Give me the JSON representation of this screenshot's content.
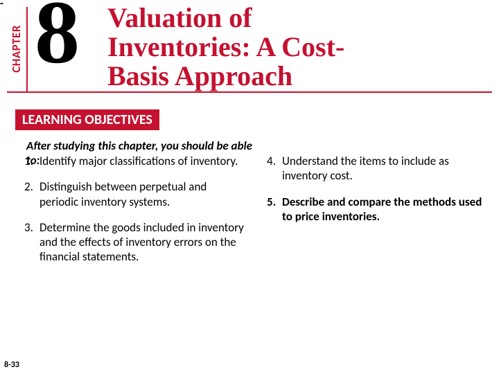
{
  "top_dash": "-",
  "chapter_label": "CHAPTER",
  "chapter_number": "8",
  "chapter_title_line1": "Valuation of",
  "chapter_title_line2": "Inventories: A Cost-",
  "chapter_title_line3": "Basis Approach",
  "objectives_heading": "LEARNING OBJECTIVES",
  "intro_line": "After studying this chapter, you should be able",
  "intro_to": "to:",
  "objectives_left": [
    {
      "n": "1.",
      "text": "Identify major classifications of inventory.",
      "strong": false
    },
    {
      "n": "2.",
      "text": "Distinguish between perpetual and periodic inventory systems.",
      "strong": false
    },
    {
      "n": "3.",
      "text": "Determine the goods included in inventory and the effects of inventory errors on the financial statements.",
      "strong": false
    }
  ],
  "objectives_right": [
    {
      "n": "4.",
      "text": "Understand the items to include as inventory cost.",
      "strong": false
    },
    {
      "n": "5.",
      "text": "Describe and compare the methods used to price inventories.",
      "strong": true
    }
  ],
  "slide_number": "8-33",
  "colors": {
    "accent": "#c41230",
    "text": "#000000",
    "background": "#ffffff"
  }
}
